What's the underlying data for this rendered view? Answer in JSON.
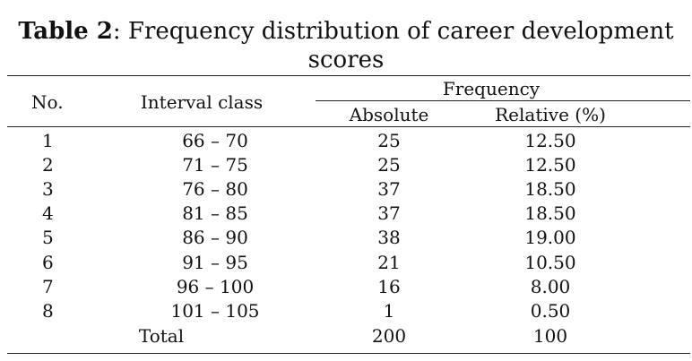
{
  "caption": {
    "label": "Table 2",
    "text": ": Frequency distribution of career development",
    "text_line2": "scores"
  },
  "table": {
    "headers": {
      "no": "No.",
      "interval": "Interval class",
      "frequency": "Frequency",
      "absolute": "Absolute",
      "relative": "Relative (%)"
    },
    "rows": [
      {
        "no": "1",
        "interval": "66 – 70",
        "absolute": "25",
        "relative": "12.50"
      },
      {
        "no": "2",
        "interval": "71 – 75",
        "absolute": "25",
        "relative": "12.50"
      },
      {
        "no": "3",
        "interval": "76 – 80",
        "absolute": "37",
        "relative": "18.50"
      },
      {
        "no": "4",
        "interval": "81 – 85",
        "absolute": "37",
        "relative": "18.50"
      },
      {
        "no": "5",
        "interval": "86 – 90",
        "absolute": "38",
        "relative": "19.00"
      },
      {
        "no": "6",
        "interval": "91 – 95",
        "absolute": "21",
        "relative": "10.50"
      },
      {
        "no": "7",
        "interval": "96 – 100",
        "absolute": "16",
        "relative": "8.00"
      },
      {
        "no": "8",
        "interval": "101 – 105",
        "absolute": "1",
        "relative": "0.50"
      }
    ],
    "total": {
      "label": "Total",
      "absolute": "200",
      "relative": "100"
    }
  }
}
